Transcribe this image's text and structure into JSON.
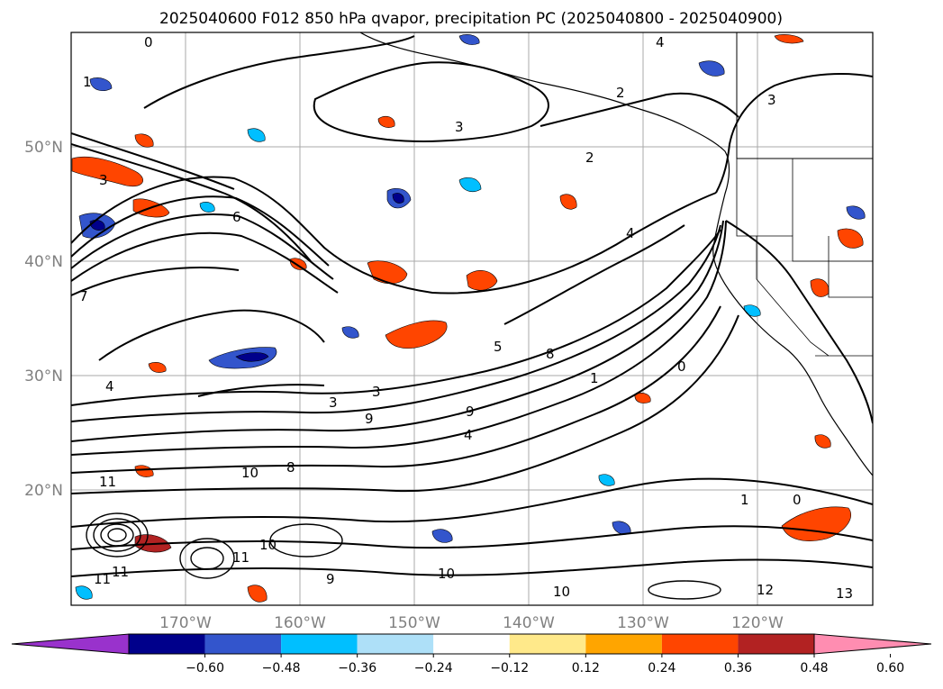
{
  "title": "2025040600 F012 850 hPa qvapor, precipitation PC (2025040800 - 2025040900)",
  "map": {
    "lat_labels": [
      "50°N",
      "40°N",
      "30°N",
      "20°N"
    ],
    "lon_labels": [
      "170°W",
      "160°W",
      "150°W",
      "140°W",
      "130°W",
      "120°W"
    ],
    "contour_labels": [
      "0",
      "1",
      "2",
      "3",
      "3",
      "4",
      "5",
      "6",
      "7",
      "8",
      "9",
      "10",
      "11",
      "12",
      "13",
      "4",
      "2",
      "3",
      "1",
      "0",
      "3",
      "4",
      "9",
      "10",
      "11",
      "10",
      "8",
      "3",
      "1",
      "4",
      "0",
      "11",
      "10",
      "11",
      "9"
    ],
    "colors": {
      "land_outline": "#000000",
      "grid": "#a0a0a0",
      "contour": "#000000"
    }
  },
  "colorbar": {
    "extend": "both",
    "colors": [
      "#9932cc",
      "#00008b",
      "#3355cc",
      "#00bfff",
      "#aee0f8",
      "#ffffff",
      "#ffe98a",
      "#ffa500",
      "#ff4500",
      "#b22222",
      "#ff8db1"
    ],
    "tick_labels": [
      "−0.60",
      "−0.48",
      "−0.36",
      "−0.24",
      "−0.12",
      "0.12",
      "0.24",
      "0.36",
      "0.48",
      "0.60"
    ]
  }
}
